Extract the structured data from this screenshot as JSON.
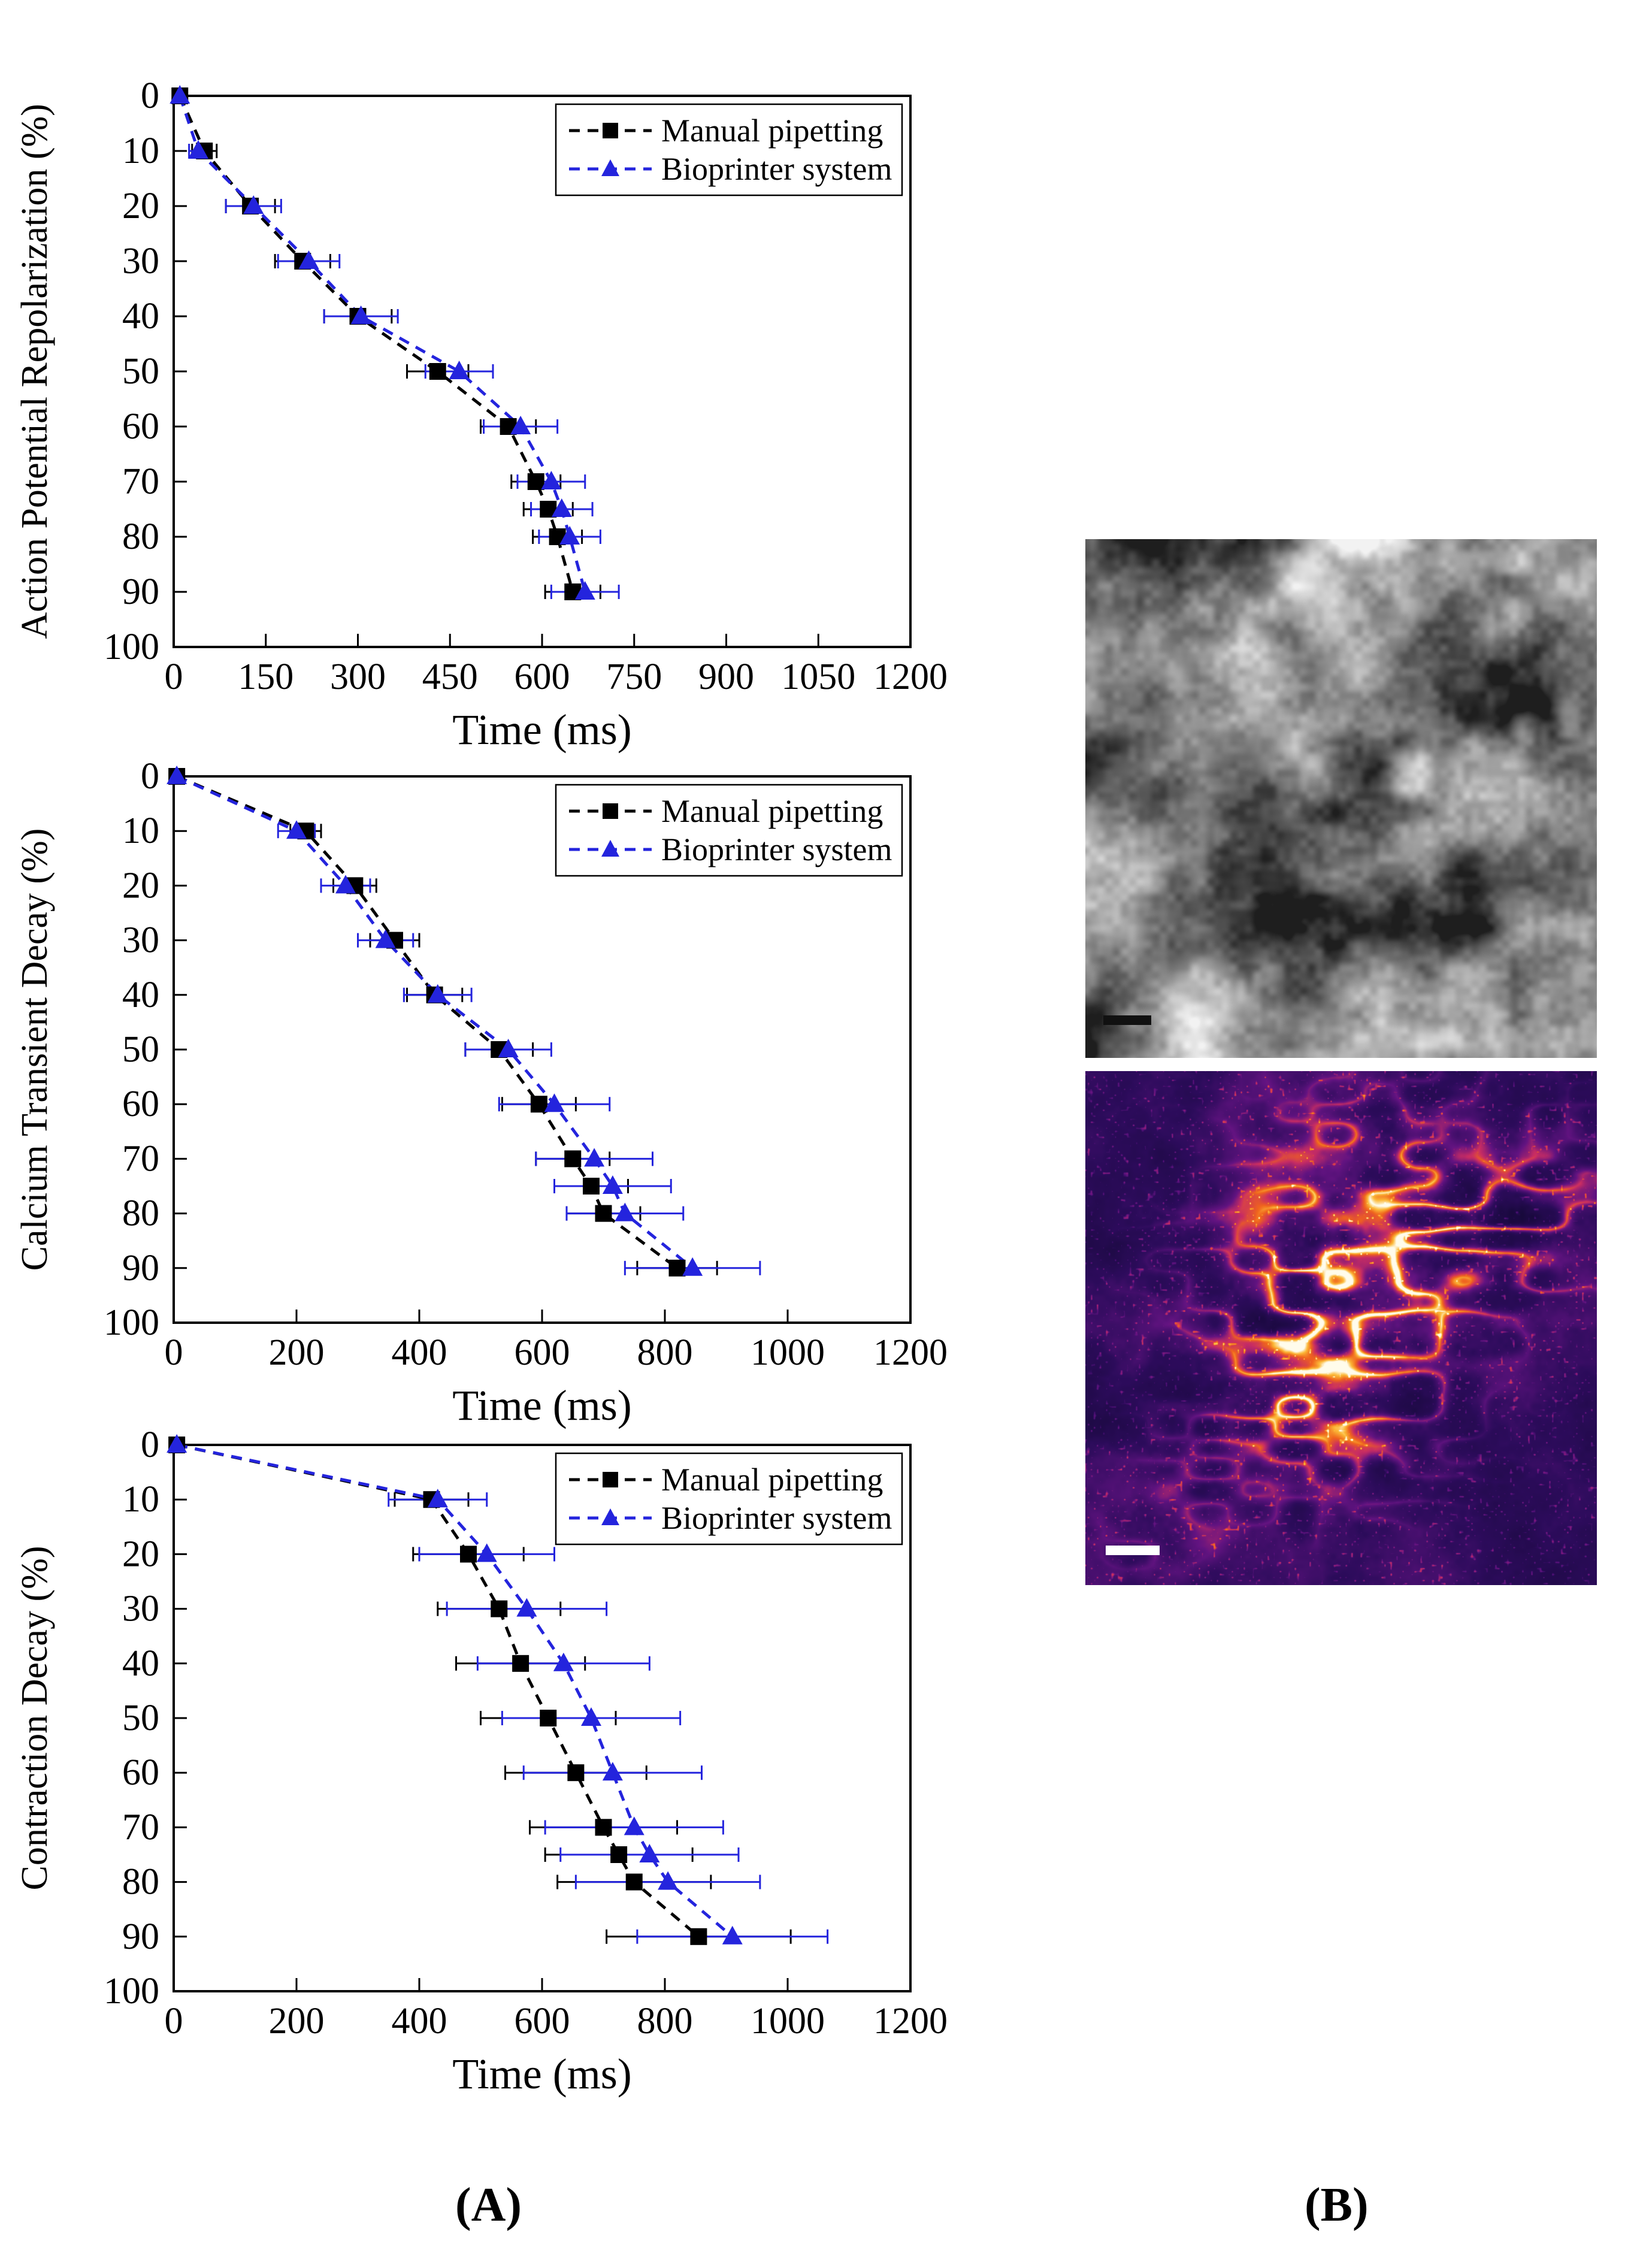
{
  "panel_a_label": "(A)",
  "panel_b_label": "(B)",
  "legend": {
    "series1": "Manual pipetting",
    "series2": "Bioprinter system"
  },
  "colors": {
    "manual": "#000000",
    "bioprinter": "#2424dd",
    "axis": "#000000",
    "background": "#ffffff"
  },
  "chart_data": [
    {
      "type": "line",
      "title": "",
      "xlabel": "Time (ms)",
      "ylabel": "Action Potential Repolarization (%)",
      "xlim": [
        0,
        1200
      ],
      "ylim": [
        0,
        100
      ],
      "y_inverted": true,
      "grid": false,
      "legend_position": "top-right",
      "xticks": [
        0,
        150,
        300,
        450,
        600,
        750,
        900,
        1050,
        1200
      ],
      "yticks": [
        0,
        10,
        20,
        30,
        40,
        50,
        60,
        70,
        80,
        90,
        100
      ],
      "y_values_percent": [
        0,
        10,
        20,
        30,
        40,
        50,
        60,
        70,
        75,
        80,
        90
      ],
      "series": [
        {
          "name": "Manual pipetting",
          "color": "#000000",
          "marker": "square",
          "linestyle": "dashed",
          "x": [
            10,
            50,
            125,
            210,
            300,
            430,
            545,
            590,
            610,
            625,
            650
          ],
          "xerr": [
            5,
            20,
            40,
            45,
            55,
            50,
            45,
            40,
            40,
            40,
            45
          ]
        },
        {
          "name": "Bioprinter system",
          "color": "#2424dd",
          "marker": "triangle",
          "linestyle": "dashed",
          "x": [
            10,
            40,
            130,
            220,
            305,
            465,
            565,
            615,
            632,
            645,
            670
          ],
          "xerr": [
            5,
            15,
            45,
            50,
            60,
            55,
            60,
            55,
            50,
            50,
            55
          ]
        }
      ]
    },
    {
      "type": "line",
      "title": "",
      "xlabel": "Time (ms)",
      "ylabel": "Calcium Transient Decay (%)",
      "xlim": [
        0,
        1200
      ],
      "ylim": [
        0,
        100
      ],
      "y_inverted": true,
      "grid": false,
      "legend_position": "top-right",
      "xticks": [
        0,
        200,
        400,
        600,
        800,
        1000,
        1200
      ],
      "yticks": [
        0,
        10,
        20,
        30,
        40,
        50,
        60,
        70,
        80,
        90,
        100
      ],
      "y_values_percent": [
        0,
        10,
        20,
        30,
        40,
        50,
        60,
        70,
        75,
        80,
        90
      ],
      "series": [
        {
          "name": "Manual pipetting",
          "color": "#000000",
          "marker": "square",
          "linestyle": "dashed",
          "x": [
            5,
            215,
            295,
            360,
            425,
            530,
            595,
            650,
            680,
            700,
            820
          ],
          "xerr": [
            3,
            25,
            35,
            40,
            45,
            55,
            60,
            60,
            60,
            60,
            65
          ]
        },
        {
          "name": "Bioprinter system",
          "color": "#2424dd",
          "marker": "triangle",
          "linestyle": "dashed",
          "x": [
            5,
            200,
            280,
            345,
            430,
            545,
            620,
            685,
            715,
            735,
            845
          ],
          "xerr": [
            3,
            30,
            40,
            45,
            55,
            70,
            90,
            95,
            95,
            95,
            110
          ]
        }
      ]
    },
    {
      "type": "line",
      "title": "",
      "xlabel": "Time (ms)",
      "ylabel": "Contraction Decay (%)",
      "xlim": [
        0,
        1200
      ],
      "ylim": [
        0,
        100
      ],
      "y_inverted": true,
      "grid": false,
      "legend_position": "top-right",
      "xticks": [
        0,
        200,
        400,
        600,
        800,
        1000,
        1200
      ],
      "yticks": [
        0,
        10,
        20,
        30,
        40,
        50,
        60,
        70,
        80,
        90,
        100
      ],
      "y_values_percent": [
        0,
        10,
        20,
        30,
        40,
        50,
        60,
        70,
        75,
        80,
        90
      ],
      "series": [
        {
          "name": "Manual pipetting",
          "color": "#000000",
          "marker": "square",
          "linestyle": "dashed",
          "x": [
            5,
            420,
            480,
            530,
            565,
            610,
            655,
            700,
            725,
            750,
            855
          ],
          "xerr": [
            3,
            60,
            90,
            100,
            105,
            110,
            115,
            120,
            120,
            125,
            150
          ]
        },
        {
          "name": "Bioprinter system",
          "color": "#2424dd",
          "marker": "triangle",
          "linestyle": "dashed",
          "x": [
            5,
            430,
            510,
            575,
            635,
            680,
            715,
            750,
            775,
            805,
            910
          ],
          "xerr": [
            3,
            80,
            110,
            130,
            140,
            145,
            145,
            145,
            145,
            150,
            155
          ]
        }
      ]
    }
  ]
}
